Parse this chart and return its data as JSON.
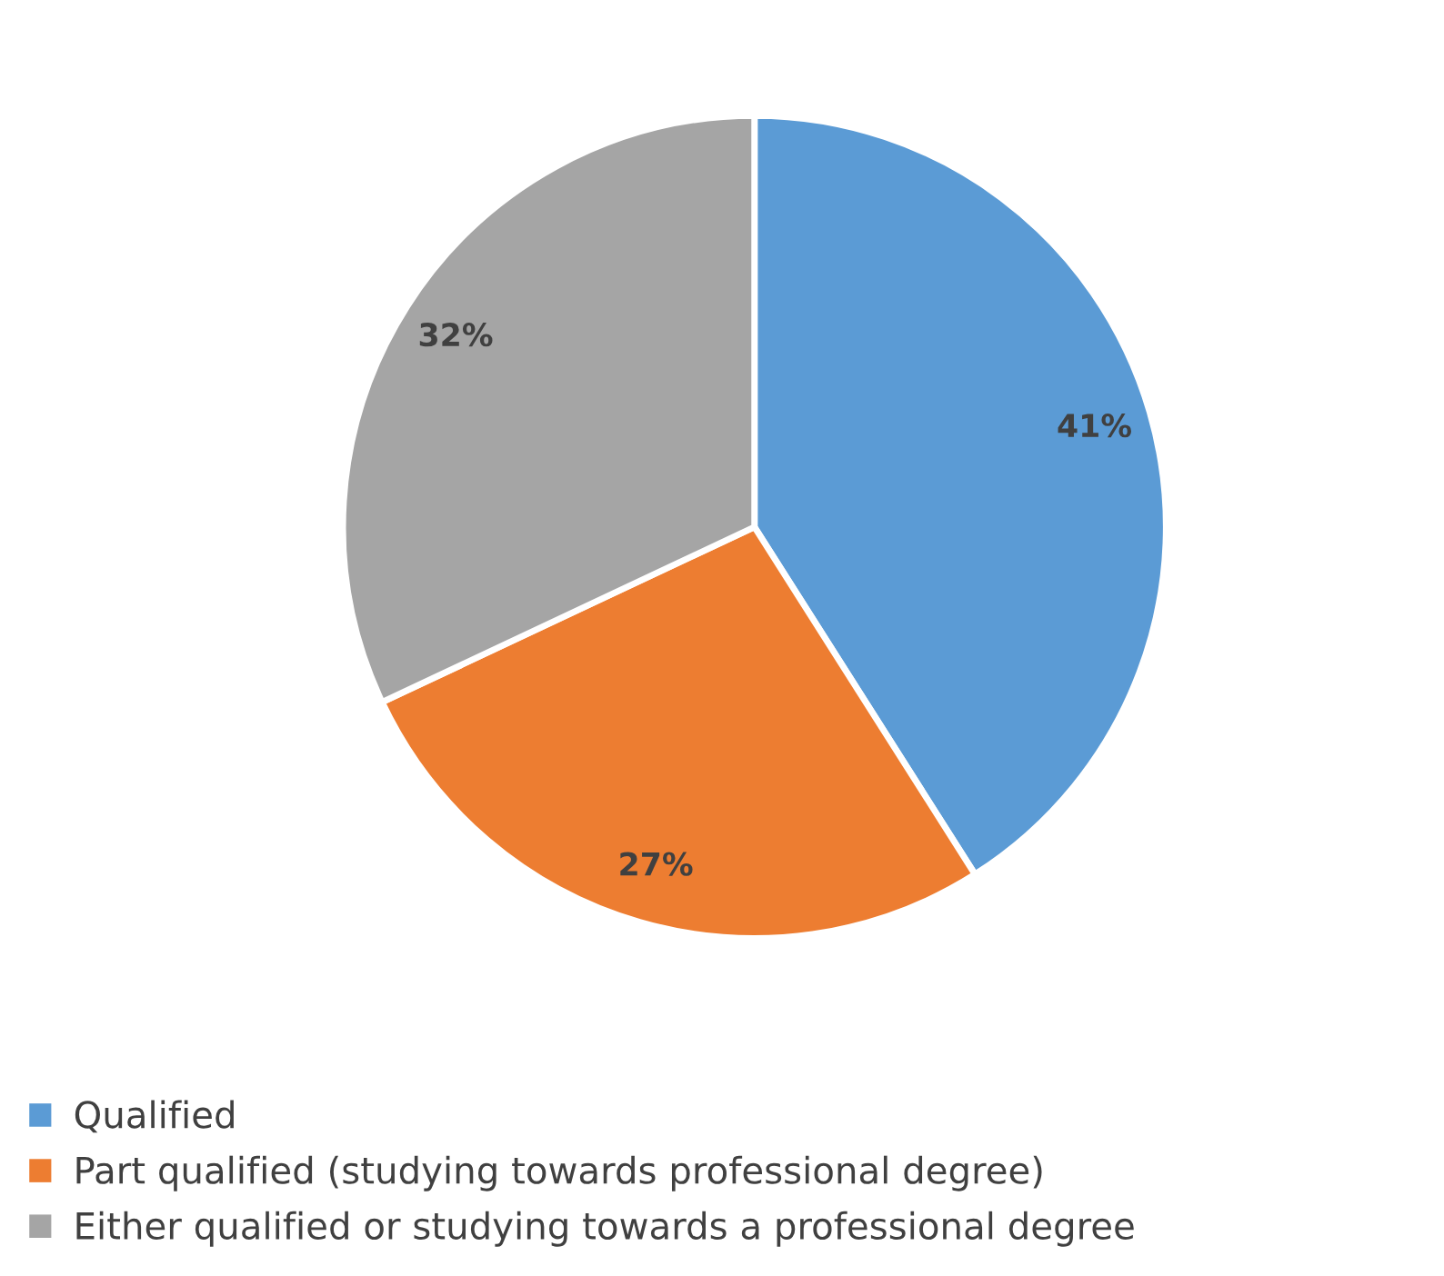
{
  "chart_data": {
    "type": "pie",
    "categories": [
      "Qualified",
      "Part qualified (studying towards professional degree)",
      "Either qualified or studying towards a professional degree"
    ],
    "values": [
      41,
      27,
      32
    ],
    "colors": [
      "#5b9bd5",
      "#ed7d31",
      "#a5a5a5"
    ],
    "value_labels": [
      "41%",
      "27%",
      "32%"
    ],
    "legend": "bottom left"
  }
}
